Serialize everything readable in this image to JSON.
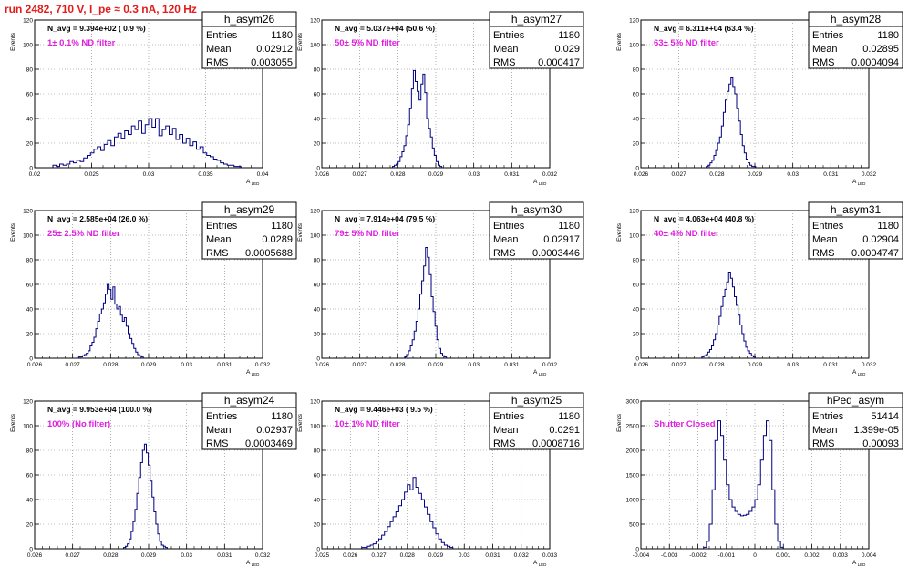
{
  "header": {
    "run_title": "run 2482,   710 V, I_pe ≈ 0.3 nA, 120 Hz"
  },
  "colors": {
    "histogram": "#000080",
    "title": "#e41c1c",
    "filter_label": "#e020e0",
    "grid": "#808080"
  },
  "chart_data": [
    {
      "type": "histogram",
      "name": "h_asym26",
      "navg": "N_avg = 9.394e+02 ( 0.9 %)",
      "filter": "1± 0.1% ND filter",
      "stats": {
        "entries": "1180",
        "mean": "0.02912",
        "rms": "0.003055"
      },
      "xlim": [
        0.02,
        0.04
      ],
      "ylim": [
        0,
        120
      ],
      "xticks": [
        "0.02",
        "0.025",
        "0.03",
        "0.035",
        "0.04"
      ],
      "yticks": [
        "0",
        "20",
        "40",
        "60",
        "80",
        "100",
        "120"
      ],
      "ylabel": "Events",
      "xlabel": "A_LED",
      "bin_start": 0.0216,
      "bin_width": 0.0003,
      "counts": [
        2,
        1,
        3,
        2,
        3,
        5,
        4,
        6,
        5,
        8,
        10,
        12,
        15,
        17,
        14,
        19,
        22,
        18,
        25,
        28,
        24,
        30,
        27,
        34,
        31,
        38,
        28,
        35,
        40,
        33,
        40,
        26,
        31,
        34,
        27,
        32,
        23,
        27,
        20,
        24,
        18,
        21,
        15,
        17,
        12,
        10,
        9,
        7,
        6,
        4,
        3,
        2,
        2,
        1,
        1
      ]
    },
    {
      "type": "histogram",
      "name": "h_asym27",
      "navg": "N_avg = 5.037e+04 (50.6 %)",
      "filter": "50± 5% ND filter",
      "stats": {
        "entries": "1180",
        "mean": "0.029",
        "rms": "0.000417"
      },
      "xlim": [
        0.026,
        0.032
      ],
      "ylim": [
        0,
        120
      ],
      "xticks": [
        "0.026",
        "0.027",
        "0.028",
        "0.029",
        "0.03",
        "0.031",
        "0.032"
      ],
      "yticks": [
        "0",
        "20",
        "40",
        "60",
        "80",
        "100",
        "120"
      ],
      "ylabel": "Events",
      "xlabel": "A_LED",
      "bin_start": 0.02786,
      "bin_width": 5e-05,
      "counts": [
        1,
        2,
        3,
        5,
        9,
        13,
        18,
        26,
        35,
        48,
        64,
        79,
        70,
        62,
        55,
        68,
        76,
        61,
        40,
        32,
        25,
        16,
        10,
        5,
        2,
        1
      ]
    },
    {
      "type": "histogram",
      "name": "h_asym28",
      "navg": "N_avg = 6.311e+04 (63.4 %)",
      "filter": "63± 5% ND filter",
      "stats": {
        "entries": "1180",
        "mean": "0.02895",
        "rms": "0.0004094"
      },
      "xlim": [
        0.026,
        0.032
      ],
      "ylim": [
        0,
        120
      ],
      "xticks": [
        "0.026",
        "0.027",
        "0.028",
        "0.029",
        "0.03",
        "0.031",
        "0.032"
      ],
      "yticks": [
        "0",
        "20",
        "40",
        "60",
        "80",
        "100",
        "120"
      ],
      "ylabel": "Events",
      "xlabel": "A_LED",
      "bin_start": 0.02772,
      "bin_width": 5e-05,
      "counts": [
        1,
        2,
        4,
        6,
        10,
        14,
        20,
        25,
        34,
        45,
        55,
        62,
        68,
        73,
        66,
        60,
        48,
        38,
        27,
        18,
        12,
        7,
        4,
        2,
        1,
        1
      ]
    },
    {
      "type": "histogram",
      "name": "h_asym29",
      "navg": "N_avg = 2.585e+04 (26.0 %)",
      "filter": "25± 2.5% ND filter",
      "stats": {
        "entries": "1180",
        "mean": "0.0289",
        "rms": "0.0005688"
      },
      "xlim": [
        0.026,
        0.032
      ],
      "ylim": [
        0,
        120
      ],
      "xticks": [
        "0.026",
        "0.027",
        "0.028",
        "0.029",
        "0.03",
        "0.031",
        "0.032"
      ],
      "yticks": [
        "0",
        "20",
        "40",
        "60",
        "80",
        "100",
        "120"
      ],
      "ylabel": "Events",
      "xlabel": "A_LED",
      "bin_start": 0.02716,
      "bin_width": 5e-05,
      "counts": [
        1,
        1,
        2,
        3,
        4,
        6,
        10,
        13,
        17,
        24,
        30,
        36,
        40,
        45,
        52,
        60,
        56,
        48,
        58,
        44,
        40,
        42,
        35,
        30,
        33,
        26,
        20,
        16,
        12,
        8,
        5,
        3,
        2,
        1
      ]
    },
    {
      "type": "histogram",
      "name": "h_asym30",
      "navg": "N_avg = 7.914e+04 (79.5 %)",
      "filter": "79± 5% ND filter",
      "stats": {
        "entries": "1180",
        "mean": "0.02917",
        "rms": "0.0003446"
      },
      "xlim": [
        0.026,
        0.032
      ],
      "ylim": [
        0,
        120
      ],
      "xticks": [
        "0.026",
        "0.027",
        "0.028",
        "0.029",
        "0.03",
        "0.031",
        "0.032"
      ],
      "yticks": [
        "0",
        "20",
        "40",
        "60",
        "80",
        "100",
        "120"
      ],
      "ylabel": "Events",
      "xlabel": "A_LED",
      "bin_start": 0.02818,
      "bin_width": 5e-05,
      "counts": [
        1,
        3,
        6,
        10,
        15,
        22,
        30,
        40,
        52,
        63,
        75,
        90,
        82,
        68,
        50,
        38,
        26,
        15,
        8,
        4,
        2,
        1
      ]
    },
    {
      "type": "histogram",
      "name": "h_asym31",
      "navg": "N_avg = 4.063e+04 (40.8 %)",
      "filter": "40± 4% ND filter",
      "stats": {
        "entries": "1180",
        "mean": "0.02904",
        "rms": "0.0004747"
      },
      "xlim": [
        0.026,
        0.032
      ],
      "ylim": [
        0,
        120
      ],
      "xticks": [
        "0.026",
        "0.027",
        "0.028",
        "0.029",
        "0.03",
        "0.031",
        "0.032"
      ],
      "yticks": [
        "0",
        "20",
        "40",
        "60",
        "80",
        "100",
        "120"
      ],
      "ylabel": "Events",
      "xlabel": "A_LED",
      "bin_start": 0.02761,
      "bin_width": 5e-05,
      "counts": [
        1,
        2,
        3,
        5,
        7,
        10,
        15,
        20,
        27,
        34,
        42,
        50,
        56,
        62,
        70,
        65,
        58,
        50,
        43,
        35,
        27,
        20,
        14,
        9,
        6,
        4,
        2,
        1
      ]
    },
    {
      "type": "histogram",
      "name": "h_asym24",
      "navg": "N_avg = 9.953e+04 (100.0 %)",
      "filter": "100% (No filter)",
      "stats": {
        "entries": "1180",
        "mean": "0.02937",
        "rms": "0.0003469"
      },
      "xlim": [
        0.026,
        0.032
      ],
      "ylim": [
        0,
        120
      ],
      "xticks": [
        "0.026",
        "0.027",
        "0.028",
        "0.029",
        "0.03",
        "0.031",
        "0.032"
      ],
      "yticks": [
        "0",
        "20",
        "40",
        "60",
        "80",
        "100",
        "120"
      ],
      "ylabel": "Events",
      "xlabel": "A_LED",
      "bin_start": 0.02834,
      "bin_width": 5e-05,
      "counts": [
        1,
        2,
        4,
        8,
        14,
        22,
        32,
        45,
        58,
        70,
        80,
        85,
        78,
        68,
        55,
        42,
        30,
        20,
        12,
        6,
        3,
        2,
        1
      ]
    },
    {
      "type": "histogram",
      "name": "h_asym25",
      "navg": "N_avg = 9.446e+03 ( 9.5 %)",
      "filter": "10± 1% ND filter",
      "stats": {
        "entries": "1180",
        "mean": "0.0291",
        "rms": "0.0008716"
      },
      "xlim": [
        0.025,
        0.033
      ],
      "ylim": [
        0,
        120
      ],
      "xticks": [
        "0.025",
        "0.026",
        "0.027",
        "0.028",
        "0.029",
        "0.03",
        "0.031",
        "0.032",
        "0.033"
      ],
      "yticks": [
        "0",
        "20",
        "40",
        "60",
        "80",
        "100",
        "120"
      ],
      "ylabel": "Events",
      "xlabel": "A_LED",
      "bin_start": 0.0264,
      "bin_width": 0.0001,
      "counts": [
        1,
        1,
        2,
        3,
        4,
        6,
        8,
        11,
        14,
        18,
        22,
        26,
        30,
        35,
        40,
        46,
        52,
        48,
        58,
        50,
        45,
        40,
        34,
        28,
        22,
        17,
        12,
        8,
        5,
        3,
        2,
        1
      ]
    },
    {
      "type": "histogram",
      "name": "hPed_asym",
      "navg": "",
      "filter": "Shutter Closed",
      "stats": {
        "entries": "51414",
        "mean": "1.399e-05",
        "rms": "0.00093"
      },
      "xlim": [
        -0.004,
        0.004
      ],
      "ylim": [
        0,
        3000
      ],
      "xticks": [
        "-0.004",
        "-0.003",
        "-0.002",
        "-0.001",
        "0",
        "0.001",
        "0.002",
        "0.003",
        "0.004"
      ],
      "yticks": [
        "0",
        "500",
        "1000",
        "1500",
        "2000",
        "2500",
        "3000"
      ],
      "ylabel": "Events",
      "xlabel": "A_LED",
      "bin_start": -0.0018,
      "bin_width": 0.0001,
      "counts": [
        30,
        150,
        500,
        1200,
        2200,
        2600,
        2300,
        1800,
        1300,
        1000,
        850,
        760,
        700,
        670,
        680,
        700,
        760,
        850,
        1000,
        1300,
        1800,
        2300,
        2600,
        2200,
        1200,
        500,
        150,
        30
      ]
    }
  ]
}
